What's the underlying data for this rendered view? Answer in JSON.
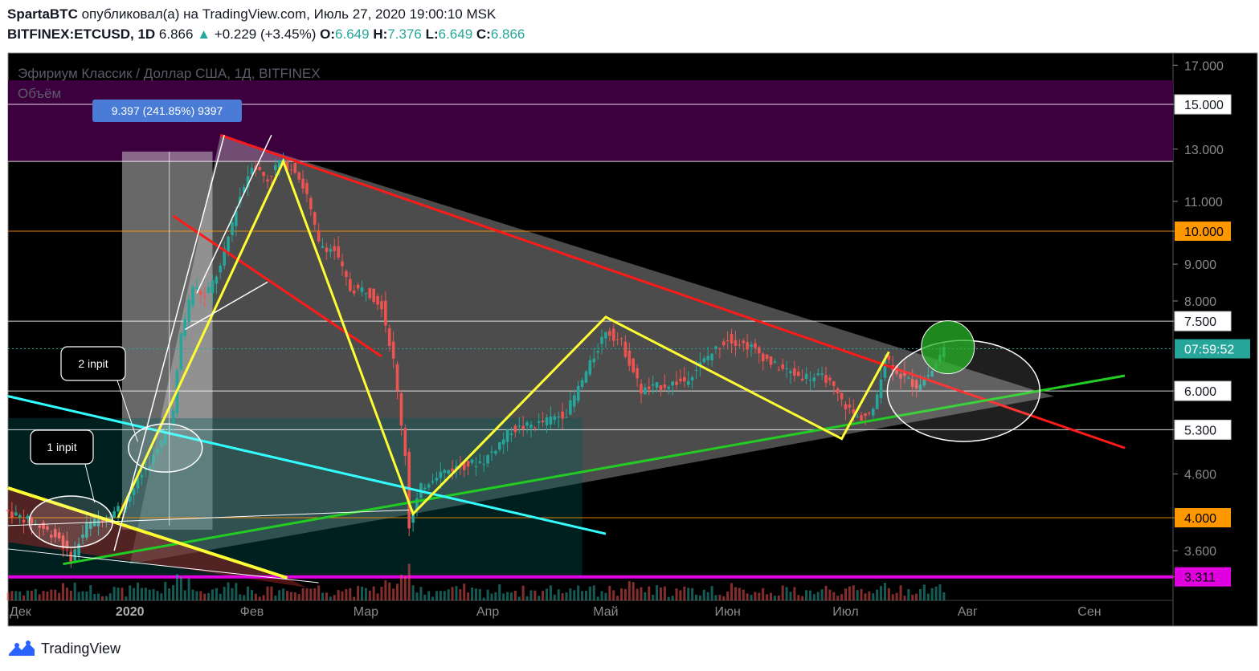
{
  "header": {
    "author": "SpartaBTC",
    "published_text": "опубликовал(а) на TradingView.com, Июль 27, 2020 19:00:10 MSK",
    "symbol": "BITFINEX:ETCUSD, 1D",
    "last": "6.866",
    "change": "+0.229 (+3.45%)",
    "o_label": "O:",
    "o": "6.649",
    "h_label": "H:",
    "h": "7.376",
    "l_label": "L:",
    "l": "6.649",
    "c_label": "C:",
    "c": "6.866",
    "up_arrow": "▲"
  },
  "chart_title": "Эфириум Классик / Доллар США, 1Д, BITFINEX",
  "volume_label": "Объём",
  "measure_label": "9.397 (241.85%) 9397",
  "annotations": {
    "first": "1 inpit",
    "second": "2 inpit"
  },
  "footer": {
    "brand": "TradingView"
  },
  "colors": {
    "background": "#000000",
    "up": "#26a69a",
    "down": "#ef5350",
    "resistance_zone": "#3d003f",
    "trend_red": "#ff1a1a",
    "trend_green": "#22cc22",
    "trend_yellow": "#ffff33",
    "trend_cyan": "#33ffff",
    "support_magenta": "#e000e0",
    "orange_level": "#ff9800"
  },
  "chart_data": {
    "type": "candlestick",
    "title": "Эфириум Классик / Доллар США, 1Д, BITFINEX",
    "scale": "log",
    "ylim": [
      3.3,
      17.5
    ],
    "x_axis": {
      "tick_labels": [
        "Дек",
        "2020",
        "Фев",
        "Мар",
        "Апр",
        "Май",
        "Июн",
        "Июл",
        "Авг",
        "Сен"
      ],
      "range": [
        "2019-12-01",
        "2020-09-10"
      ]
    },
    "y_axis": {
      "tick_labels": [
        "17.000",
        "15.000",
        "13.000",
        "11.000",
        "10.000",
        "9.000",
        "8.000",
        "7.500",
        "6.000",
        "5.300",
        "4.600",
        "4.000",
        "3.600",
        "3.311"
      ],
      "grey_ticks": [
        "17.000",
        "13.000",
        "11.000",
        "9.000",
        "8.000",
        "4.600",
        "3.600"
      ],
      "boxed_levels": [
        {
          "label": "15.000",
          "style": "white"
        },
        {
          "label": "10.000",
          "style": "orange"
        },
        {
          "label": "7.500",
          "style": "white"
        },
        {
          "label": "6.000",
          "style": "white"
        },
        {
          "label": "5.300",
          "style": "white"
        },
        {
          "label": "4.000",
          "style": "orange"
        },
        {
          "label": "3.311",
          "style": "magenta"
        }
      ],
      "current_price_label": "07:59:52",
      "current_price": 6.866
    },
    "horizontal_levels": [
      15,
      12.5,
      10,
      7.5,
      6,
      5.3,
      4,
      3.311
    ],
    "resistance_zone": [
      12.5,
      16.2
    ],
    "price_path": [
      [
        "2019-12-01",
        4.1
      ],
      [
        "2019-12-08",
        3.95
      ],
      [
        "2019-12-15",
        3.75
      ],
      [
        "2019-12-18",
        3.5
      ],
      [
        "2019-12-22",
        3.9
      ],
      [
        "2019-12-28",
        4.05
      ],
      [
        "2020-01-01",
        4.2
      ],
      [
        "2020-01-05",
        4.6
      ],
      [
        "2020-01-09",
        4.95
      ],
      [
        "2020-01-13",
        5.6
      ],
      [
        "2020-01-15",
        7.2
      ],
      [
        "2020-01-18",
        8.4
      ],
      [
        "2020-01-21",
        8.1
      ],
      [
        "2020-01-25",
        8.9
      ],
      [
        "2020-01-29",
        10.8
      ],
      [
        "2020-02-02",
        12.4
      ],
      [
        "2020-02-06",
        11.8
      ],
      [
        "2020-02-09",
        12.5
      ],
      [
        "2020-02-13",
        12.2
      ],
      [
        "2020-02-16",
        11.2
      ],
      [
        "2020-02-19",
        9.6
      ],
      [
        "2020-02-23",
        9.4
      ],
      [
        "2020-02-27",
        8.3
      ],
      [
        "2020-03-02",
        8.3
      ],
      [
        "2020-03-06",
        7.9
      ],
      [
        "2020-03-09",
        6.6
      ],
      [
        "2020-03-12",
        4.9
      ],
      [
        "2020-03-13",
        3.9
      ],
      [
        "2020-03-16",
        4.4
      ],
      [
        "2020-03-20",
        4.6
      ],
      [
        "2020-03-25",
        4.7
      ],
      [
        "2020-04-01",
        4.8
      ],
      [
        "2020-04-08",
        5.3
      ],
      [
        "2020-04-15",
        5.4
      ],
      [
        "2020-04-22",
        5.6
      ],
      [
        "2020-04-29",
        6.7
      ],
      [
        "2020-05-02",
        7.3
      ],
      [
        "2020-05-06",
        7.0
      ],
      [
        "2020-05-11",
        6.0
      ],
      [
        "2020-05-16",
        6.1
      ],
      [
        "2020-05-22",
        6.2
      ],
      [
        "2020-05-28",
        6.7
      ],
      [
        "2020-06-02",
        7.1
      ],
      [
        "2020-06-08",
        6.9
      ],
      [
        "2020-06-14",
        6.5
      ],
      [
        "2020-06-20",
        6.3
      ],
      [
        "2020-06-27",
        6.25
      ],
      [
        "2020-07-01",
        5.8
      ],
      [
        "2020-07-05",
        5.5
      ],
      [
        "2020-07-09",
        5.6
      ],
      [
        "2020-07-12",
        6.7
      ],
      [
        "2020-07-16",
        6.3
      ],
      [
        "2020-07-20",
        6.1
      ],
      [
        "2020-07-24",
        6.4
      ],
      [
        "2020-07-27",
        6.866
      ]
    ],
    "drawings": {
      "red_downtrend": [
        [
          "2020-01-24",
          13.6
        ],
        [
          "2020-09-10",
          5.0
        ]
      ],
      "red_short": [
        [
          "2020-01-12",
          10.5
        ],
        [
          "2020-03-05",
          6.7
        ]
      ],
      "green_uptrend": [
        [
          "2019-12-15",
          3.45
        ],
        [
          "2020-09-10",
          6.3
        ]
      ],
      "cyan_line": [
        [
          "2019-12-01",
          5.9
        ],
        [
          "2020-05-01",
          3.8
        ]
      ],
      "yellow_falling": [
        [
          "2019-12-01",
          4.4
        ],
        [
          "2020-02-10",
          3.3
        ]
      ],
      "yellow_zigzag": [
        [
          "2019-12-29",
          4.0
        ],
        [
          "2020-02-09",
          12.5
        ],
        [
          "2020-03-13",
          4.05
        ],
        [
          "2020-05-01",
          7.6
        ],
        [
          "2020-06-30",
          5.15
        ],
        [
          "2020-07-12",
          6.8
        ]
      ]
    }
  }
}
